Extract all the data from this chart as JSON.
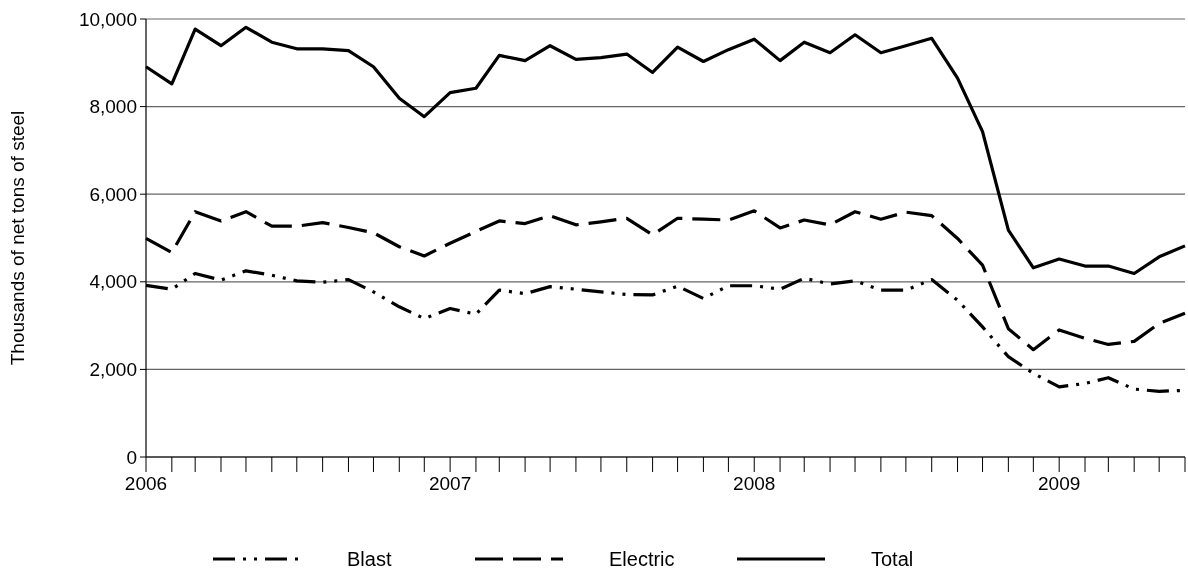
{
  "chart_data": {
    "type": "line",
    "ylabel": "Thousands of net tons of steel",
    "x": [
      "2006-01",
      "2006-02",
      "2006-03",
      "2006-04",
      "2006-05",
      "2006-06",
      "2006-07",
      "2006-08",
      "2006-09",
      "2006-10",
      "2006-11",
      "2006-12",
      "2007-01",
      "2007-02",
      "2007-03",
      "2007-04",
      "2007-05",
      "2007-06",
      "2007-07",
      "2007-08",
      "2007-09",
      "2007-10",
      "2007-11",
      "2007-12",
      "2008-01",
      "2008-02",
      "2008-03",
      "2008-04",
      "2008-05",
      "2008-06",
      "2008-07",
      "2008-08",
      "2008-09",
      "2008-10",
      "2008-11",
      "2008-12",
      "2009-01",
      "2009-02",
      "2009-03",
      "2009-04",
      "2009-05",
      "2009-06"
    ],
    "series": [
      {
        "name": "Blast",
        "color": "#000000",
        "line_style": "dashdot",
        "values": [
          3920,
          3830,
          4190,
          4040,
          4250,
          4150,
          4020,
          3990,
          4050,
          3770,
          3430,
          3160,
          3390,
          3260,
          3810,
          3730,
          3890,
          3830,
          3770,
          3710,
          3700,
          3900,
          3620,
          3910,
          3910,
          3830,
          4080,
          3950,
          4020,
          3810,
          3810,
          4050,
          3580,
          2970,
          2290,
          1910,
          1600,
          1680,
          1810,
          1550,
          1500,
          1520
        ]
      },
      {
        "name": "Electric",
        "color": "#000000",
        "line_style": "dashed",
        "values": [
          4990,
          4670,
          5600,
          5390,
          5600,
          5270,
          5270,
          5350,
          5240,
          5120,
          4800,
          4590,
          4880,
          5150,
          5390,
          5330,
          5510,
          5300,
          5370,
          5450,
          5070,
          5450,
          5430,
          5410,
          5620,
          5230,
          5410,
          5300,
          5600,
          5430,
          5590,
          5510,
          4990,
          4380,
          2930,
          2450,
          2900,
          2710,
          2570,
          2640,
          3050,
          3280
        ]
      },
      {
        "name": "Total",
        "color": "#000000",
        "line_style": "solid",
        "values": [
          8910,
          8520,
          9770,
          9390,
          9810,
          9470,
          9320,
          9320,
          9280,
          8910,
          8190,
          7770,
          8320,
          8420,
          9170,
          9050,
          9390,
          9080,
          9120,
          9200,
          8780,
          9360,
          9030,
          9300,
          9540,
          9050,
          9470,
          9230,
          9640,
          9230,
          9390,
          9560,
          8650,
          7430,
          5180,
          4320,
          4520,
          4360,
          4360,
          4190,
          4570,
          4820
        ]
      }
    ],
    "xlim": [
      "2006-01",
      "2009-06"
    ],
    "xticks": [
      {
        "value": "2006-01",
        "label": "2006"
      },
      {
        "value": "2006-02",
        "label": null
      },
      {
        "value": "2006-03",
        "label": null
      },
      {
        "value": "2006-04",
        "label": null
      },
      {
        "value": "2006-05",
        "label": null
      },
      {
        "value": "2006-06",
        "label": null
      },
      {
        "value": "2006-07",
        "label": null
      },
      {
        "value": "2006-08",
        "label": null
      },
      {
        "value": "2006-09",
        "label": null
      },
      {
        "value": "2006-10",
        "label": null
      },
      {
        "value": "2006-11",
        "label": null
      },
      {
        "value": "2006-12",
        "label": null
      },
      {
        "value": "2007-01",
        "label": "2007"
      },
      {
        "value": "2007-02",
        "label": null
      },
      {
        "value": "2007-03",
        "label": null
      },
      {
        "value": "2007-04",
        "label": null
      },
      {
        "value": "2007-05",
        "label": null
      },
      {
        "value": "2007-06",
        "label": null
      },
      {
        "value": "2007-07",
        "label": null
      },
      {
        "value": "2007-08",
        "label": null
      },
      {
        "value": "2007-09",
        "label": null
      },
      {
        "value": "2007-10",
        "label": null
      },
      {
        "value": "2007-11",
        "label": null
      },
      {
        "value": "2007-12",
        "label": null
      },
      {
        "value": "2008-01",
        "label": "2008"
      },
      {
        "value": "2008-02",
        "label": null
      },
      {
        "value": "2008-03",
        "label": null
      },
      {
        "value": "2008-04",
        "label": null
      },
      {
        "value": "2008-05",
        "label": null
      },
      {
        "value": "2008-06",
        "label": null
      },
      {
        "value": "2008-07",
        "label": null
      },
      {
        "value": "2008-08",
        "label": null
      },
      {
        "value": "2008-09",
        "label": null
      },
      {
        "value": "2008-10",
        "label": null
      },
      {
        "value": "2008-11",
        "label": null
      },
      {
        "value": "2008-12",
        "label": null
      },
      {
        "value": "2009-01",
        "label": "2009"
      },
      {
        "value": "2009-02",
        "label": null
      },
      {
        "value": "2009-03",
        "label": null
      },
      {
        "value": "2009-04",
        "label": null
      },
      {
        "value": "2009-05",
        "label": null
      },
      {
        "value": "2009-06",
        "label": null
      }
    ],
    "ylim": [
      0,
      10000
    ],
    "yticks": [
      {
        "value": 0,
        "label": "0"
      },
      {
        "value": 2000,
        "label": "2,000"
      },
      {
        "value": 4000,
        "label": "4,000"
      },
      {
        "value": 6000,
        "label": "6,000"
      },
      {
        "value": 8000,
        "label": "8,000"
      },
      {
        "value": 10000,
        "label": "10,000"
      }
    ],
    "grid": "y",
    "legend": "bottom",
    "marker": "none"
  }
}
